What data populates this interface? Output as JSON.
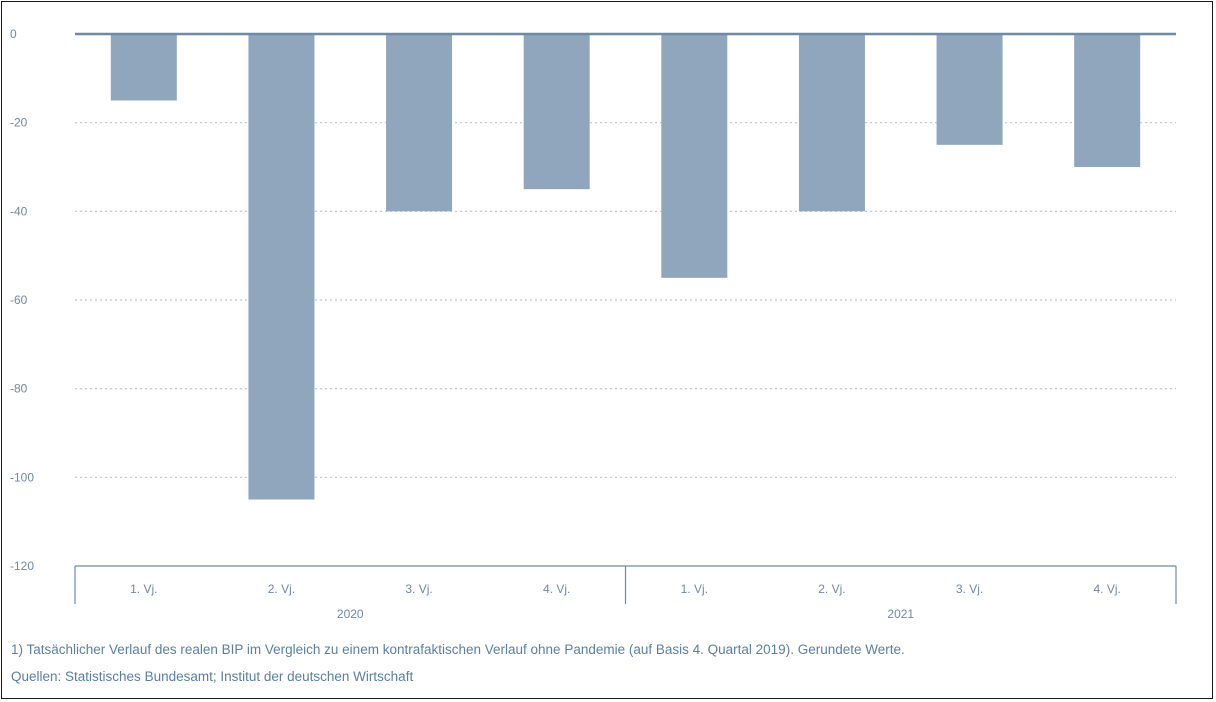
{
  "chart_data": {
    "type": "bar",
    "title": "",
    "xlabel": "",
    "ylabel": "",
    "ylim": [
      -120,
      0
    ],
    "yticks": [
      0,
      -20,
      -40,
      -60,
      -80,
      -100,
      -120
    ],
    "grid": "dotted horizontal",
    "color": "#8fa6bd",
    "categories": [
      "1. Vj.",
      "2. Vj.",
      "3. Vj.",
      "4. Vj.",
      "1. Vj.",
      "2. Vj.",
      "3. Vj.",
      "4. Vj."
    ],
    "groups": [
      {
        "label": "2020",
        "span": 4
      },
      {
        "label": "2021",
        "span": 4
      }
    ],
    "values": [
      -15,
      -105,
      -40,
      -35,
      -55,
      -40,
      -25,
      -30
    ]
  },
  "footnotes": {
    "line1": "1) Tatsächlicher Verlauf des realen BIP im Vergleich zu einem kontrafaktischen Verlauf ohne Pandemie (auf Basis 4. Quartal 2019). Gerundete Werte.",
    "line2": "Quellen: Statistisches Bundesamt; Institut der deutschen Wirtschaft"
  },
  "colors": {
    "bar": "#8fa6bd",
    "axis": "#6d8aa8",
    "grid": "#bcc6d0",
    "text": "#5b7fa3"
  }
}
